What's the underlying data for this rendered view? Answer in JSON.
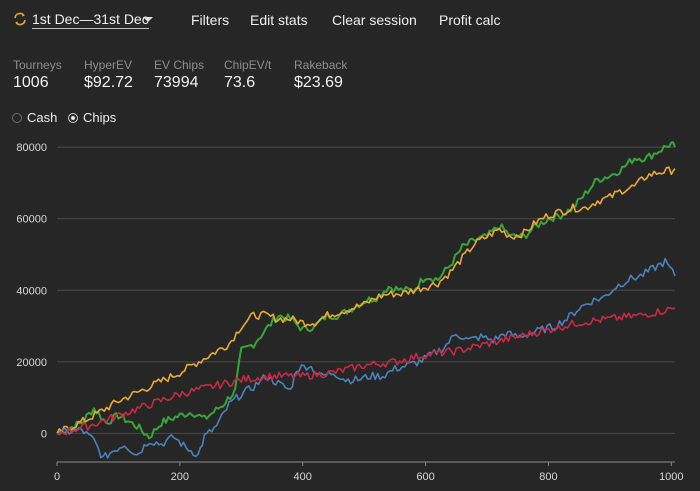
{
  "toolbar": {
    "date_range": "1st Dec—31st Dec",
    "filters": "Filters",
    "edit_stats": "Edit stats",
    "clear_session": "Clear session",
    "profit_calc": "Profit calc"
  },
  "stats": [
    {
      "label": "Tourneys",
      "value": "1006"
    },
    {
      "label": "HyperEV",
      "value": "$92.72"
    },
    {
      "label": "EV Chips",
      "value": "73994"
    },
    {
      "label": "ChipEV/t",
      "value": "73.6"
    },
    {
      "label": "Rakeback",
      "value": "$23.69"
    }
  ],
  "mode": {
    "options": [
      "Cash",
      "Chips"
    ],
    "selected": "Chips"
  },
  "chart_data": {
    "type": "line",
    "xlim": [
      0,
      1006
    ],
    "ylim": [
      -8000,
      82000
    ],
    "x_ticks": [
      0,
      200,
      400,
      600,
      800,
      1000
    ],
    "y_ticks": [
      0,
      20000,
      40000,
      60000,
      80000
    ],
    "grid": true,
    "series": [
      {
        "color": "#3aa33a",
        "points": [
          [
            0,
            0
          ],
          [
            40,
            3000
          ],
          [
            60,
            7000
          ],
          [
            80,
            3000
          ],
          [
            100,
            5000
          ],
          [
            130,
            2000
          ],
          [
            150,
            -1000
          ],
          [
            170,
            3000
          ],
          [
            200,
            5000
          ],
          [
            220,
            6000
          ],
          [
            240,
            4000
          ],
          [
            270,
            8000
          ],
          [
            290,
            12000
          ],
          [
            300,
            23000
          ],
          [
            320,
            25000
          ],
          [
            340,
            29000
          ],
          [
            360,
            33000
          ],
          [
            380,
            32000
          ],
          [
            400,
            29000
          ],
          [
            420,
            30000
          ],
          [
            440,
            33000
          ],
          [
            460,
            33000
          ],
          [
            480,
            35000
          ],
          [
            500,
            37000
          ],
          [
            520,
            38000
          ],
          [
            540,
            41000
          ],
          [
            560,
            40000
          ],
          [
            580,
            40000
          ],
          [
            600,
            44000
          ],
          [
            620,
            43000
          ],
          [
            640,
            47000
          ],
          [
            660,
            52000
          ],
          [
            680,
            54000
          ],
          [
            700,
            55000
          ],
          [
            720,
            58000
          ],
          [
            740,
            55000
          ],
          [
            760,
            55000
          ],
          [
            780,
            58000
          ],
          [
            800,
            60000
          ],
          [
            820,
            61000
          ],
          [
            840,
            63000
          ],
          [
            860,
            67000
          ],
          [
            880,
            71000
          ],
          [
            900,
            72000
          ],
          [
            920,
            74000
          ],
          [
            940,
            77000
          ],
          [
            960,
            77000
          ],
          [
            980,
            79000
          ],
          [
            1000,
            81000
          ],
          [
            1006,
            80000
          ]
        ]
      },
      {
        "color": "#e8a93a",
        "points": [
          [
            0,
            0
          ],
          [
            50,
            4000
          ],
          [
            100,
            9000
          ],
          [
            150,
            13000
          ],
          [
            200,
            17000
          ],
          [
            250,
            22000
          ],
          [
            280,
            25000
          ],
          [
            300,
            30000
          ],
          [
            320,
            33000
          ],
          [
            340,
            33000
          ],
          [
            360,
            32000
          ],
          [
            380,
            32000
          ],
          [
            400,
            31000
          ],
          [
            420,
            31000
          ],
          [
            440,
            33000
          ],
          [
            460,
            34000
          ],
          [
            480,
            35000
          ],
          [
            500,
            36000
          ],
          [
            520,
            38000
          ],
          [
            540,
            39000
          ],
          [
            560,
            39000
          ],
          [
            580,
            40000
          ],
          [
            600,
            41000
          ],
          [
            620,
            42000
          ],
          [
            640,
            45000
          ],
          [
            660,
            49000
          ],
          [
            680,
            53000
          ],
          [
            700,
            55000
          ],
          [
            720,
            57000
          ],
          [
            740,
            55000
          ],
          [
            760,
            56000
          ],
          [
            780,
            59000
          ],
          [
            800,
            61000
          ],
          [
            820,
            62000
          ],
          [
            840,
            63000
          ],
          [
            860,
            63000
          ],
          [
            880,
            65000
          ],
          [
            900,
            66000
          ],
          [
            920,
            68000
          ],
          [
            940,
            69000
          ],
          [
            960,
            72000
          ],
          [
            980,
            73000
          ],
          [
            1000,
            73500
          ],
          [
            1006,
            74000
          ]
        ]
      },
      {
        "color": "#4b82ba",
        "points": [
          [
            0,
            0
          ],
          [
            40,
            1000
          ],
          [
            60,
            -2000
          ],
          [
            75,
            -7000
          ],
          [
            90,
            -5000
          ],
          [
            110,
            -3000
          ],
          [
            130,
            -6000
          ],
          [
            150,
            -2000
          ],
          [
            170,
            -3000
          ],
          [
            190,
            -1000
          ],
          [
            210,
            -4000
          ],
          [
            230,
            -6000
          ],
          [
            240,
            -1000
          ],
          [
            260,
            2000
          ],
          [
            280,
            8000
          ],
          [
            300,
            11000
          ],
          [
            320,
            13000
          ],
          [
            340,
            16000
          ],
          [
            360,
            14000
          ],
          [
            380,
            12000
          ],
          [
            390,
            18000
          ],
          [
            410,
            19000
          ],
          [
            430,
            16000
          ],
          [
            450,
            17000
          ],
          [
            470,
            15000
          ],
          [
            490,
            15000
          ],
          [
            510,
            16000
          ],
          [
            530,
            16000
          ],
          [
            550,
            18000
          ],
          [
            570,
            19000
          ],
          [
            590,
            20000
          ],
          [
            610,
            22000
          ],
          [
            630,
            24000
          ],
          [
            650,
            28000
          ],
          [
            670,
            26000
          ],
          [
            690,
            27000
          ],
          [
            710,
            26000
          ],
          [
            730,
            28000
          ],
          [
            750,
            27000
          ],
          [
            770,
            28000
          ],
          [
            790,
            29000
          ],
          [
            810,
            30000
          ],
          [
            830,
            32000
          ],
          [
            850,
            35000
          ],
          [
            870,
            37000
          ],
          [
            890,
            38000
          ],
          [
            910,
            41000
          ],
          [
            930,
            43000
          ],
          [
            950,
            44000
          ],
          [
            970,
            46000
          ],
          [
            990,
            48000
          ],
          [
            1006,
            44000
          ]
        ]
      },
      {
        "color": "#c62b45",
        "points": [
          [
            0,
            0
          ],
          [
            50,
            2000
          ],
          [
            100,
            5000
          ],
          [
            150,
            8000
          ],
          [
            200,
            11000
          ],
          [
            250,
            13000
          ],
          [
            300,
            15000
          ],
          [
            350,
            16000
          ],
          [
            400,
            16000
          ],
          [
            450,
            17000
          ],
          [
            500,
            19000
          ],
          [
            550,
            20000
          ],
          [
            600,
            22000
          ],
          [
            650,
            23000
          ],
          [
            700,
            25000
          ],
          [
            750,
            27000
          ],
          [
            800,
            29000
          ],
          [
            850,
            31000
          ],
          [
            900,
            32000
          ],
          [
            950,
            33000
          ],
          [
            1006,
            35000
          ]
        ]
      }
    ]
  }
}
